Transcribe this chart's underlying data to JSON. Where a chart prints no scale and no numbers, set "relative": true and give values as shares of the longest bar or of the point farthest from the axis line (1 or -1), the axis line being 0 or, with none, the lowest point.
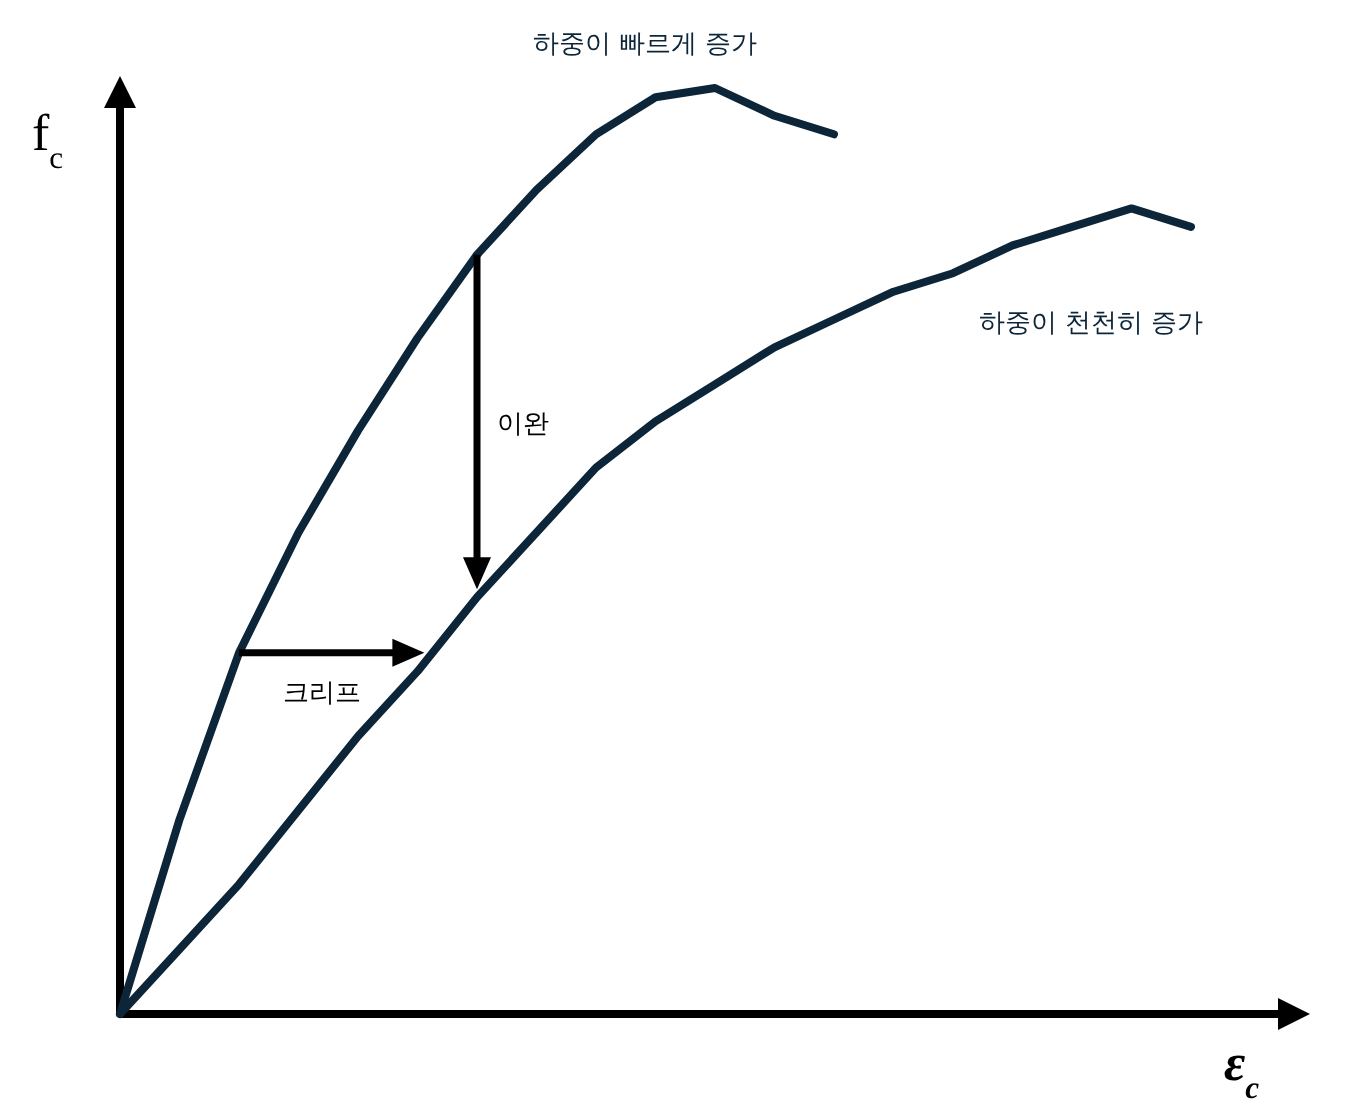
{
  "chart_data": {
    "type": "line",
    "relative": true,
    "xlabel": "ε$_{c}$",
    "ylabel": "f$_{c}$",
    "line_style": "solid",
    "categories": [
      null,
      null,
      null,
      null,
      null,
      null,
      null,
      null,
      null,
      null,
      null,
      null,
      null,
      null,
      null,
      null,
      null,
      null,
      null
    ],
    "series": [
      {
        "name": "하중이 빠르게 증가",
        "color": "#0d2538",
        "values": [
          0,
          0.21,
          0.39,
          0.52,
          0.63,
          0.73,
          0.82,
          0.89,
          0.95,
          0.99,
          1,
          0.97,
          0.95,
          null,
          null,
          null,
          null,
          null,
          null
        ]
      },
      {
        "name": "하중이 천천히 증가",
        "color": "#0d2538",
        "values": [
          0,
          0.07,
          0.14,
          0.22,
          0.3,
          0.37,
          0.45,
          0.52,
          0.59,
          0.64,
          0.68,
          0.72,
          0.75,
          0.78,
          0.8,
          0.83,
          0.85,
          0.87,
          0.85
        ]
      }
    ],
    "annotations": [
      "크리프",
      "이완"
    ]
  }
}
